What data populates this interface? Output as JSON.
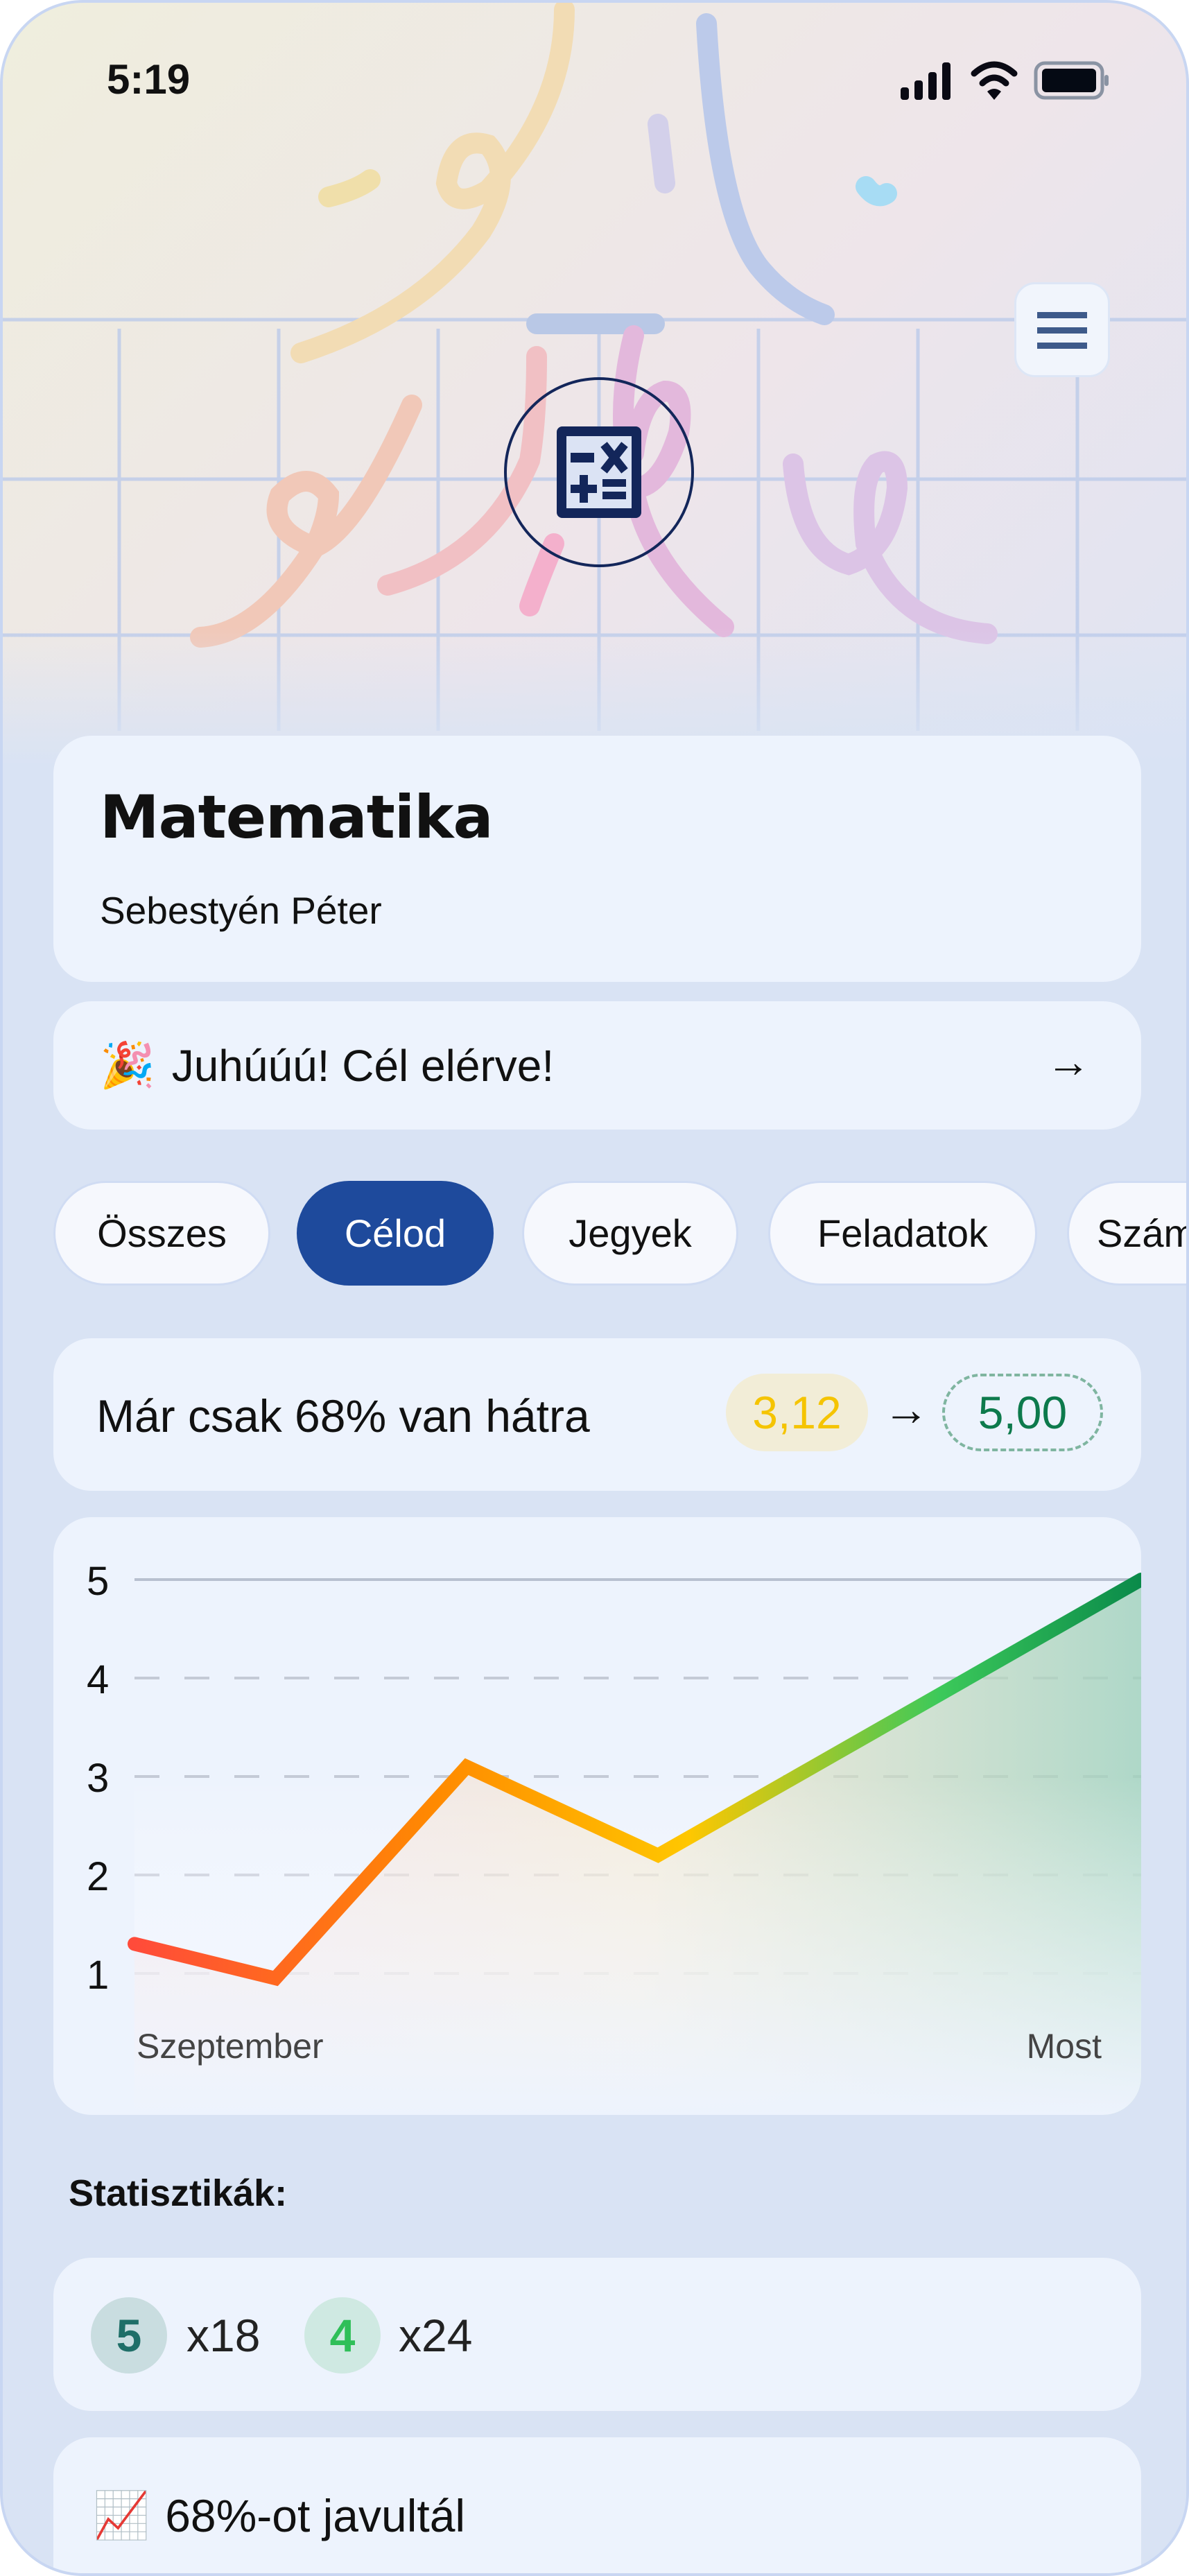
{
  "status_bar": {
    "time": "5:19",
    "icons": [
      "signal-icon",
      "wifi-icon",
      "battery-icon"
    ]
  },
  "header": {
    "menu_icon": "hamburger-menu-icon",
    "subject_icon": "calculator-icon"
  },
  "subject": {
    "title": "Matematika",
    "teacher": "Sebestyén Péter"
  },
  "banner": {
    "emoji": "🎉",
    "text": "Juhúúú! Cél elérve!",
    "arrow": "→"
  },
  "tabs": [
    {
      "label": "Összes",
      "active": false
    },
    {
      "label": "Célod",
      "active": true
    },
    {
      "label": "Jegyek",
      "active": false
    },
    {
      "label": "Feladatok",
      "active": false
    },
    {
      "label": "Szám",
      "active": false
    }
  ],
  "goal": {
    "text": "Már csak 68% van hátra",
    "current": "3,12",
    "arrow": "→",
    "target": "5,00"
  },
  "chart_data": {
    "type": "area",
    "y_ticks": [
      1,
      2,
      3,
      4,
      5
    ],
    "ylim": [
      0.5,
      5
    ],
    "x_labels": [
      "Szeptember",
      "Most"
    ],
    "values": [
      1.3,
      0.95,
      3.1,
      2.2,
      5.0
    ],
    "grid": "dashed horizontal",
    "colors": {
      "low": "#ff4b3a",
      "mid": "#ffc700",
      "high": "#0a8a4a"
    }
  },
  "stats": {
    "label": "Statisztikák:",
    "grades": [
      {
        "grade": "5",
        "count": "x18",
        "color": "#1f6f68",
        "bg": "#c9dde0"
      },
      {
        "grade": "4",
        "count": "x24",
        "color": "#2fbf58",
        "bg": "#cfe9e2"
      }
    ],
    "improvement": {
      "emoji": "📈",
      "text": "68%-ot javultál"
    }
  },
  "colors": {
    "accent": "#1e4a9c",
    "card": "#edf3fd",
    "background": "#d9e3f4"
  }
}
